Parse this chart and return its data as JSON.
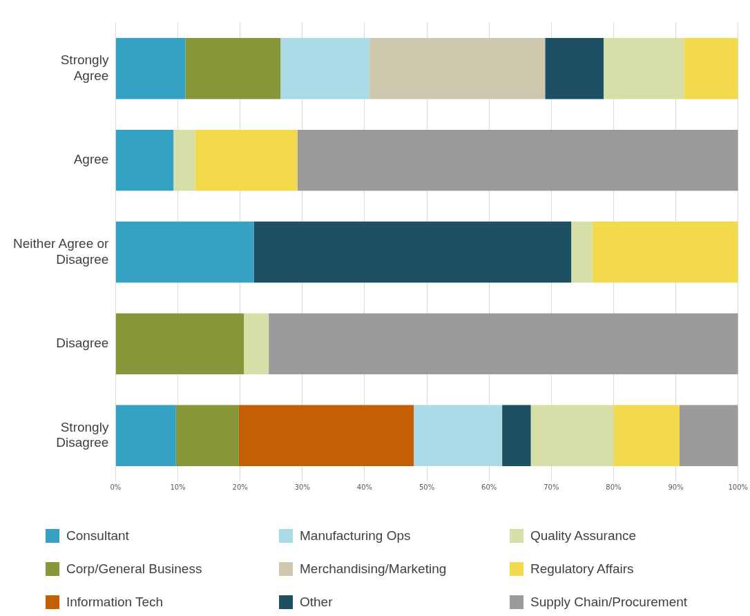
{
  "chart_data": {
    "type": "bar",
    "orientation": "horizontal",
    "stacked": true,
    "categories": [
      "Strongly Agree",
      "Agree",
      "Neither Agree or Disagree",
      "Disagree",
      "Strongly Disagree"
    ],
    "series": [
      {
        "name": "Consultant",
        "color": "#35a2c4",
        "values": [
          11.2,
          9.3,
          22.2,
          null,
          9.7
        ]
      },
      {
        "name": "Corp/General Business",
        "color": "#879638",
        "values": [
          15.3,
          null,
          null,
          20.6,
          10.1
        ]
      },
      {
        "name": "Information Tech",
        "color": "#c55f05",
        "values": [
          null,
          null,
          null,
          null,
          28.1
        ]
      },
      {
        "name": "Manufacturing Ops",
        "color": "#acdbe8",
        "values": [
          14.3,
          null,
          null,
          null,
          14.2
        ]
      },
      {
        "name": "Merchandising/Marketing",
        "color": "#cfc6ae",
        "values": [
          28.2,
          null,
          null,
          null,
          null
        ]
      },
      {
        "name": "Other",
        "color": "#1c5062",
        "values": [
          9.4,
          null,
          51.0,
          null,
          4.6
        ]
      },
      {
        "name": "Quality Assurance",
        "color": "#d5dfa7",
        "values": [
          12.9,
          3.5,
          3.4,
          4.0,
          13.3
        ]
      },
      {
        "name": "Regulatory Affairs",
        "color": "#f2da4c",
        "values": [
          8.7,
          16.4,
          23.4,
          null,
          10.6
        ]
      },
      {
        "name": "Supply Chain/Procurement",
        "color": "#9b9b9b",
        "values": [
          null,
          70.8,
          null,
          75.4,
          9.4
        ]
      }
    ],
    "xlim": [
      0,
      100
    ],
    "xticks": [
      {
        "value": 0,
        "label": "0%"
      },
      {
        "value": 10,
        "label": "10%"
      },
      {
        "value": 20,
        "label": "20%"
      },
      {
        "value": 30,
        "label": "30%"
      },
      {
        "value": 40,
        "label": "40%"
      },
      {
        "value": 50,
        "label": "50%"
      },
      {
        "value": 60,
        "label": "60%"
      },
      {
        "value": 70,
        "label": "70%"
      },
      {
        "value": 80,
        "label": "80%"
      },
      {
        "value": 90,
        "label": "90%"
      },
      {
        "value": 100,
        "label": "100%"
      }
    ],
    "grid": "x",
    "legend": "bottom"
  }
}
